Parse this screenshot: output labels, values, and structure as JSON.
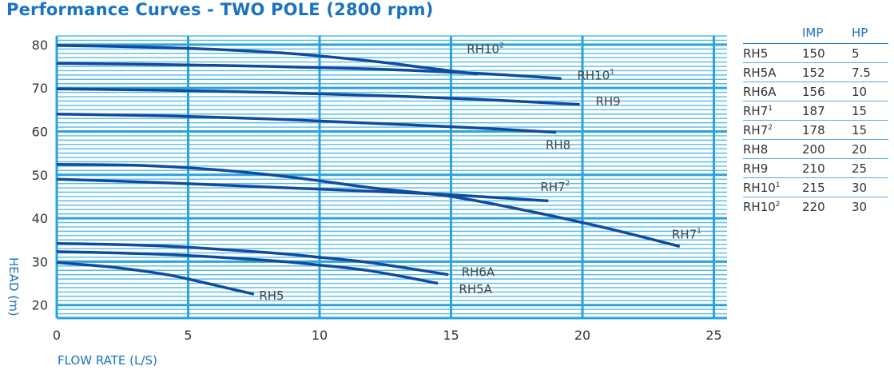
{
  "title": "Performance Curves - TWO POLE (2800 rpm)",
  "colors": {
    "title": "#1a73c0",
    "major_grid": "#29a3e0",
    "minor_grid": "#57bce6",
    "curve": "#0f4c9e",
    "axis_label": "#1a73c0"
  },
  "chart_data": {
    "type": "line",
    "title": "Performance Curves - TWO POLE (2800 rpm)",
    "xlabel": "FLOW RATE (L/S)",
    "ylabel": "HEAD (m)",
    "xlim": [
      0,
      25.5
    ],
    "ylim": [
      17,
      82
    ],
    "xticks": [
      "0",
      "5",
      "10",
      "15",
      "20",
      "25"
    ],
    "yticks": [
      "20",
      "30",
      "40",
      "50",
      "60",
      "70",
      "80"
    ],
    "grid": true,
    "series": [
      {
        "name": "RH5",
        "label_base": "RH5",
        "label_sup": "",
        "x": [
          0,
          2,
          4,
          5,
          6,
          7.5
        ],
        "y": [
          29.8,
          28.8,
          27.2,
          26.0,
          24.6,
          22.5
        ]
      },
      {
        "name": "RH5A",
        "label_base": "RH5A",
        "label_sup": "",
        "x": [
          0,
          4,
          8,
          10,
          12,
          14.5
        ],
        "y": [
          32.3,
          31.7,
          30.3,
          29.2,
          27.8,
          25.0
        ]
      },
      {
        "name": "RH6A",
        "label_base": "RH6A",
        "label_sup": "",
        "x": [
          0,
          4,
          8,
          10,
          12,
          14.9
        ],
        "y": [
          34.2,
          33.6,
          32.1,
          31.0,
          29.7,
          27.0
        ]
      },
      {
        "name": "RH7¹",
        "label_base": "RH7",
        "label_sup": "1",
        "x": [
          0,
          3,
          6,
          9,
          12,
          15,
          18,
          21,
          23.7
        ],
        "y": [
          52.4,
          52.2,
          51.2,
          49.4,
          47.0,
          45.0,
          41.6,
          37.6,
          33.5
        ]
      },
      {
        "name": "RH7²",
        "label_base": "RH7",
        "label_sup": "2",
        "x": [
          0,
          4,
          8,
          12,
          15,
          18.7
        ],
        "y": [
          49.0,
          48.2,
          47.2,
          46.2,
          45.4,
          44.0
        ]
      },
      {
        "name": "RH8",
        "label_base": "RH8",
        "label_sup": "",
        "x": [
          0,
          4,
          8,
          12,
          16,
          19
        ],
        "y": [
          64.0,
          63.6,
          62.9,
          61.9,
          60.8,
          59.8
        ]
      },
      {
        "name": "RH9",
        "label_base": "RH9",
        "label_sup": "",
        "x": [
          0,
          4,
          8,
          12,
          16,
          19.9
        ],
        "y": [
          69.8,
          69.5,
          69.0,
          68.3,
          67.4,
          66.2
        ]
      },
      {
        "name": "RH10¹",
        "label_base": "RH10",
        "label_sup": "1",
        "x": [
          0,
          4,
          8,
          12,
          16,
          19.2
        ],
        "y": [
          75.7,
          75.4,
          75.0,
          74.4,
          73.4,
          72.2
        ]
      },
      {
        "name": "RH10²",
        "label_base": "RH10",
        "label_sup": "2",
        "x": [
          0,
          3,
          6,
          9,
          12,
          14,
          16
        ],
        "y": [
          79.8,
          79.5,
          78.9,
          77.9,
          76.2,
          74.7,
          73.2
        ]
      }
    ],
    "curve_labels": [
      {
        "series": "RH10²",
        "x": 15.6,
        "y": 78.0
      },
      {
        "series": "RH10¹",
        "x": 19.8,
        "y": 72.0
      },
      {
        "series": "RH9",
        "x": 20.5,
        "y": 66.0
      },
      {
        "series": "RH8",
        "x": 18.6,
        "y": 55.9
      },
      {
        "series": "RH7²",
        "x": 18.4,
        "y": 46.3
      },
      {
        "series": "RH7¹",
        "x": 23.4,
        "y": 35.3
      },
      {
        "series": "RH6A",
        "x": 15.4,
        "y": 26.7
      },
      {
        "series": "RH5A",
        "x": 15.3,
        "y": 22.7
      },
      {
        "series": "RH5",
        "x": 7.7,
        "y": 21.2
      }
    ]
  },
  "table": {
    "headers": [
      "",
      "IMP",
      "HP"
    ],
    "rows": [
      {
        "model": "RH5",
        "model_base": "RH5",
        "model_sup": "",
        "imp": "150",
        "hp": "5"
      },
      {
        "model": "RH5A",
        "model_base": "RH5A",
        "model_sup": "",
        "imp": "152",
        "hp": "7.5"
      },
      {
        "model": "RH6A",
        "model_base": "RH6A",
        "model_sup": "",
        "imp": "156",
        "hp": "10"
      },
      {
        "model": "RH7¹",
        "model_base": "RH7",
        "model_sup": "1",
        "imp": "187",
        "hp": "15"
      },
      {
        "model": "RH7²",
        "model_base": "RH7",
        "model_sup": "2",
        "imp": "178",
        "hp": "15"
      },
      {
        "model": "RH8",
        "model_base": "RH8",
        "model_sup": "",
        "imp": "200",
        "hp": "20"
      },
      {
        "model": "RH9",
        "model_base": "RH9",
        "model_sup": "",
        "imp": "210",
        "hp": "25"
      },
      {
        "model": "RH10¹",
        "model_base": "RH10",
        "model_sup": "1",
        "imp": "215",
        "hp": "30"
      },
      {
        "model": "RH10²",
        "model_base": "RH10",
        "model_sup": "2",
        "imp": "220",
        "hp": "30"
      }
    ]
  }
}
